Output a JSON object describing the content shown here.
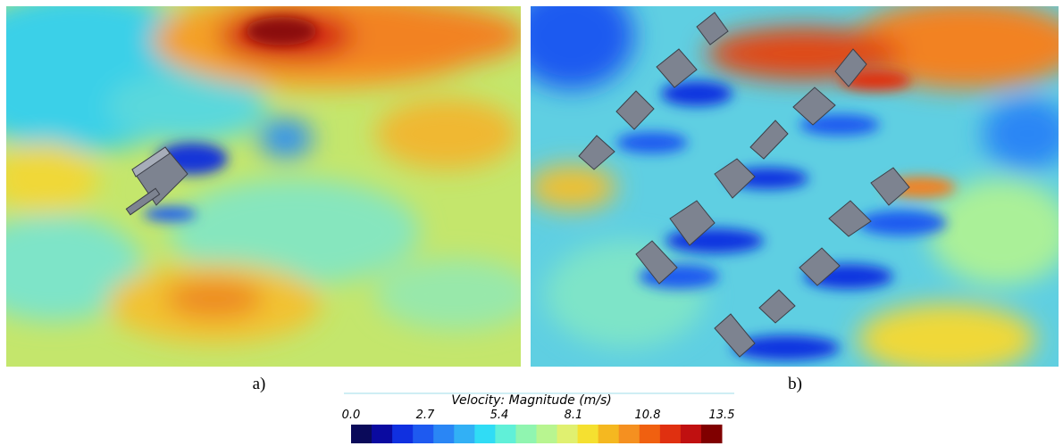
{
  "panels": [
    {
      "label": "a)"
    },
    {
      "label": "b)"
    }
  ],
  "colorbar": {
    "title": "Velocity: Magnitude (m/s)",
    "range": [
      0,
      13.5
    ],
    "ticks": [
      {
        "value": 0,
        "label": "0.0"
      },
      2.7,
      5.4,
      8.1,
      10.8,
      13.5
    ],
    "colors": [
      "#0a0a5a",
      "#0a0aa0",
      "#1030e0",
      "#1e5af0",
      "#2a86f5",
      "#32b0f5",
      "#30dcf5",
      "#60f0d8",
      "#90f5b0",
      "#b8f590",
      "#e0f070",
      "#f5e030",
      "#f5b820",
      "#f59020",
      "#f06010",
      "#e03010",
      "#c01010",
      "#800000"
    ]
  }
}
